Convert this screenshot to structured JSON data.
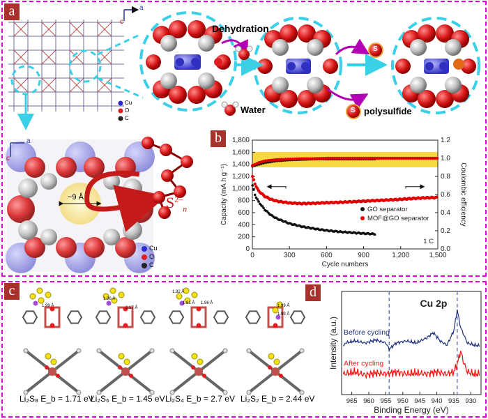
{
  "panel_a": {
    "label": "a",
    "axis_c": "c",
    "axis_a": "a",
    "top_legend": [
      "Cu",
      "O",
      "C"
    ],
    "dehydration": "Dehydration",
    "water": "Water",
    "polysulfide": "polysulfide",
    "s_symbol": "S",
    "pore_size": "~9 Å",
    "polysulfide_formula": "S",
    "formula_sup": "2–",
    "formula_sub": "n",
    "bottom_axis_c": "c",
    "bottom_axis_a": "a",
    "bottom_legend": [
      "Cu",
      "O",
      "C"
    ]
  },
  "panel_b": {
    "label": "b",
    "rate": "1 C",
    "chart_data": {
      "type": "scatter",
      "xlabel": "Cycle numbers",
      "ylabel": "Capacity (mA h g⁻¹)",
      "y2label": "Coulombic efficiency",
      "xlim": [
        0,
        1500
      ],
      "ylim": [
        0,
        1800
      ],
      "y2lim": [
        0,
        1.2
      ],
      "x_ticks": [
        "0",
        "300",
        "600",
        "900",
        "1,200",
        "1,500"
      ],
      "y_ticks": [
        "0",
        "200",
        "400",
        "600",
        "800",
        "1,000",
        "1,200",
        "1,400",
        "1,600",
        "1,800"
      ],
      "y2_ticks": [
        "0.0",
        "0.2",
        "0.4",
        "0.6",
        "0.8",
        "1.0",
        "1.2"
      ],
      "highlight_band_y2": [
        0.9,
        1.07
      ],
      "legend": [
        "GO separator",
        "MOF@GO separator"
      ],
      "series": [
        {
          "name": "GO separator",
          "axis": "capacity",
          "color": "#111111",
          "x": [
            1,
            20,
            50,
            100,
            150,
            200,
            300,
            400,
            500,
            600,
            700,
            800,
            900,
            1000
          ],
          "y": [
            1050,
            900,
            780,
            650,
            560,
            500,
            420,
            370,
            335,
            305,
            285,
            270,
            255,
            245
          ]
        },
        {
          "name": "MOF@GO separator",
          "axis": "capacity",
          "color": "#e00000",
          "x": [
            1,
            20,
            50,
            100,
            150,
            200,
            300,
            400,
            500,
            600,
            700,
            800,
            900,
            1000,
            1100,
            1200,
            1300,
            1400,
            1500
          ],
          "y": [
            1200,
            1080,
            960,
            870,
            820,
            790,
            760,
            750,
            755,
            765,
            770,
            780,
            790,
            800,
            810,
            820,
            835,
            845,
            850
          ]
        },
        {
          "name": "GO separator CE",
          "axis": "coulombic_efficiency",
          "color": "#111111",
          "x": [
            1,
            50,
            100,
            200,
            300,
            400,
            500,
            600,
            700,
            800,
            900,
            1000
          ],
          "y": [
            0.91,
            0.93,
            0.95,
            0.97,
            0.98,
            0.985,
            0.99,
            0.99,
            0.99,
            0.99,
            0.99,
            0.99
          ]
        },
        {
          "name": "MOF@GO separator CE",
          "axis": "coulombic_efficiency",
          "color": "#e00000",
          "x": [
            1,
            50,
            100,
            200,
            300,
            400,
            500,
            600,
            700,
            800,
            900,
            1000,
            1100,
            1200,
            1300,
            1400,
            1500
          ],
          "y": [
            0.92,
            0.95,
            0.97,
            0.985,
            0.99,
            0.995,
            0.995,
            1.0,
            1.0,
            1.0,
            1.0,
            1.0,
            1.0,
            1.0,
            1.0,
            1.0,
            1.0
          ]
        }
      ]
    }
  },
  "panel_c": {
    "label": "c",
    "captions": [
      "Li₂S₈ E_b = 1.71 eV",
      "Li₂S₆ E_b = 1.45 eV",
      "Li₂S₄ E_b = 2.7 eV",
      "Li₂S₂ E_b = 2.44 eV"
    ],
    "distances": [
      "1.99 Å",
      "1.96 Å",
      "2.17 Å",
      "1.92 Å",
      "1.91 Å",
      "1.96 Å",
      "1.99 Å",
      "1.99 Å"
    ]
  },
  "panel_d": {
    "label": "d",
    "chart_data": {
      "type": "line",
      "title": "Cu 2p",
      "xlabel": "Binding Energy (eV)",
      "ylabel": "Intensity (a.u.)",
      "xlim": [
        968,
        927
      ],
      "x_ticks": [
        "965",
        "960",
        "955",
        "950",
        "945",
        "940",
        "935",
        "930"
      ],
      "dashed_lines_x": [
        954,
        934
      ],
      "series": [
        {
          "name": "Before cycling",
          "color": "#1a2e80",
          "x": [
            967,
            964,
            961,
            958,
            955,
            954,
            952,
            949,
            946,
            943,
            941,
            939,
            937,
            935,
            934,
            933,
            931,
            929,
            927
          ],
          "y": [
            0.5,
            0.52,
            0.5,
            0.53,
            0.5,
            0.44,
            0.5,
            0.52,
            0.5,
            0.55,
            0.6,
            0.52,
            0.48,
            0.62,
            0.82,
            0.65,
            0.5,
            0.48,
            0.47
          ]
        },
        {
          "name": "After cycling",
          "color": "#ff1010",
          "x": [
            967,
            964,
            961,
            958,
            955,
            952,
            949,
            946,
            943,
            940,
            937,
            935,
            934,
            933,
            932,
            931,
            929,
            927
          ],
          "y": [
            0.2,
            0.22,
            0.19,
            0.21,
            0.2,
            0.22,
            0.2,
            0.21,
            0.2,
            0.22,
            0.2,
            0.22,
            0.3,
            0.42,
            0.3,
            0.22,
            0.2,
            0.2
          ]
        }
      ]
    }
  }
}
